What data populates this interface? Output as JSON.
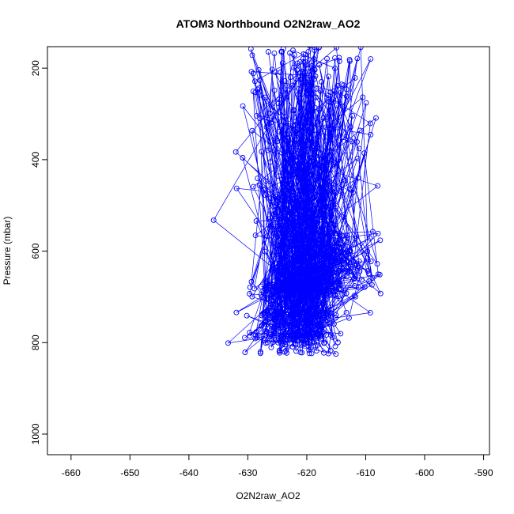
{
  "chart_data": {
    "type": "scatter",
    "title": "ATOM3 Northbound O2N2raw_AO2",
    "xlabel": "O2N2raw_AO2",
    "ylabel": "Pressure (mbar)",
    "xlim": [
      -664,
      -589
    ],
    "ylim": [
      1045,
      153
    ],
    "x_ticks": [
      -660,
      -650,
      -640,
      -630,
      -620,
      -610,
      -600,
      -590
    ],
    "y_ticks": [
      200,
      400,
      600,
      800,
      1000
    ],
    "y_reversed": true,
    "grid": false,
    "legend": "none",
    "series_color": "#0000ff",
    "marker": "open-circle",
    "connect_points": true,
    "seed": 3,
    "n_points": 900
  }
}
